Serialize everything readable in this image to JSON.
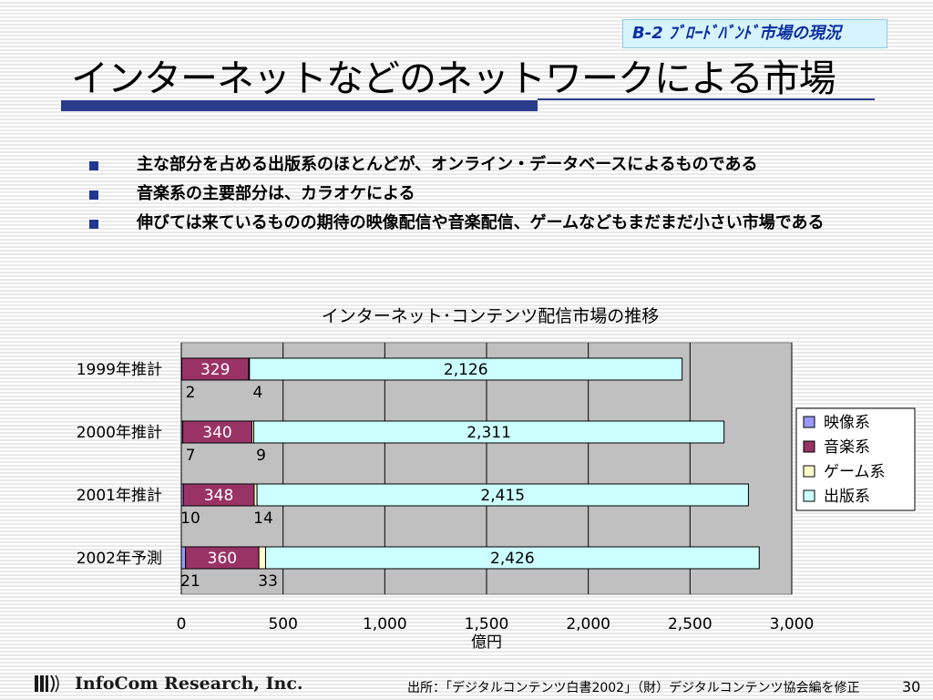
{
  "slide": {
    "section_tag": "B-2  ﾌﾞﾛｰﾄﾞﾊﾞﾝﾄﾞ市場の現況",
    "title": "インターネットなどのネットワークによる市場",
    "bullets": [
      "主な部分を占める出版系のほとんどが、オンライン・データベースによるものである",
      "音楽系の主要部分は、カラオケによる",
      "伸びては来ているものの期待の映像配信や音楽配信、ゲームなどもまだまだ小さい市場である"
    ],
    "footer": {
      "company": "InfoCom Research, Inc.",
      "source": "出所：「デジタルコンテンツ白書2002」（財）デジタルコンテンツ協会編を修正",
      "page": "30"
    }
  },
  "chart_data": {
    "type": "bar",
    "orientation": "horizontal",
    "stacked": true,
    "title": "インターネット･コンテンツ配信市場の推移",
    "xlabel": "億円",
    "ylabel": "",
    "xlim": [
      0,
      3000
    ],
    "x_ticks": [
      0,
      500,
      1000,
      1500,
      2000,
      2500,
      3000
    ],
    "x_tick_labels": [
      "0",
      "500",
      "1,000",
      "1,500",
      "2,000",
      "2,500",
      "3,000"
    ],
    "categories": [
      "1999年推計",
      "2000年推計",
      "2001年推計",
      "2002年予測"
    ],
    "series": [
      {
        "name": "映像系",
        "values": [
          2,
          7,
          10,
          21
        ],
        "labels": [
          "2",
          "7",
          "10",
          "21"
        ],
        "color": "#9999ff"
      },
      {
        "name": "音楽系",
        "values": [
          329,
          340,
          348,
          360
        ],
        "labels": [
          "329",
          "340",
          "348",
          "360"
        ],
        "color": "#993366"
      },
      {
        "name": "ゲーム系",
        "values": [
          4,
          9,
          14,
          33
        ],
        "labels": [
          "4",
          "9",
          "14",
          "33"
        ],
        "color": "#ffffcc"
      },
      {
        "name": "出版系",
        "values": [
          2126,
          2311,
          2415,
          2426
        ],
        "labels": [
          "2,126",
          "2,311",
          "2,415",
          "2,426"
        ],
        "color": "#ccffff"
      }
    ],
    "grid": true,
    "plot_background": "#c0c0c0",
    "legend_position": "right"
  }
}
